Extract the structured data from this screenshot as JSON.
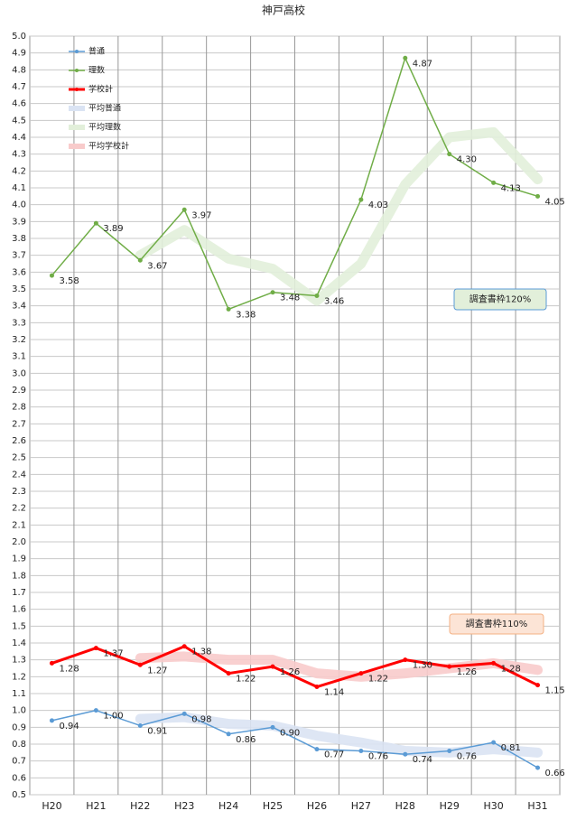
{
  "chart_data": {
    "type": "line",
    "title": "神戸高校",
    "categories": [
      "H20",
      "H21",
      "H22",
      "H23",
      "H24",
      "H25",
      "H26",
      "H27",
      "H28",
      "H29",
      "H30",
      "H31"
    ],
    "ylim": [
      0.5,
      5.0
    ],
    "yticks": [
      {
        "value": 0.5,
        "label": "0.5"
      },
      0.6,
      0.7,
      0.8,
      0.9,
      {
        "value": 1.0,
        "label": "1.0"
      },
      1.1,
      1.2,
      1.3,
      1.4,
      1.5,
      1.6,
      1.7,
      1.8,
      1.9,
      {
        "value": 2.0,
        "label": "2.0"
      },
      2.1,
      2.2,
      2.3,
      2.4,
      2.5,
      2.6,
      2.7,
      2.8,
      2.9,
      {
        "value": 3.0,
        "label": "3.0"
      },
      3.1,
      3.2,
      3.3,
      3.4,
      3.5,
      3.6,
      3.7,
      3.8,
      3.9,
      {
        "value": 4.0,
        "label": "4.0"
      },
      4.1,
      4.2,
      4.3,
      4.4,
      4.5,
      4.6,
      4.7,
      4.8,
      4.9,
      {
        "value": 5.0,
        "label": "5.0"
      }
    ],
    "grid": true,
    "legend": "top-left",
    "series": [
      {
        "name": "普通",
        "color": "#5b9bd5",
        "values": [
          0.94,
          1.0,
          0.91,
          0.98,
          0.86,
          0.9,
          0.77,
          0.76,
          0.74,
          0.76,
          0.81,
          0.66
        ],
        "value_labels": [
          "0.94",
          "1.00",
          "0.91",
          "0.98",
          "0.86",
          "0.90",
          "0.77",
          "0.76",
          "0.74",
          "0.76",
          "0.81",
          "0.66"
        ]
      },
      {
        "name": "理数",
        "color": "#70ad47",
        "values": [
          3.58,
          3.89,
          3.67,
          3.97,
          3.38,
          3.48,
          3.46,
          4.03,
          4.87,
          4.3,
          4.13,
          4.05
        ],
        "value_labels": [
          "3.58",
          "3.89",
          "3.67",
          "3.97",
          "3.38",
          "3.48",
          "3.46",
          "4.03",
          "4.87",
          "4.30",
          "4.13",
          "4.05"
        ]
      },
      {
        "name": "学校計",
        "color": "#ff0000",
        "values": [
          1.28,
          1.37,
          1.27,
          1.38,
          1.22,
          1.26,
          1.14,
          1.22,
          1.3,
          1.26,
          1.28,
          1.15
        ],
        "value_labels": [
          "1.28",
          "1.37",
          "1.27",
          "1.38",
          "1.22",
          "1.26",
          "1.14",
          "1.22",
          "1.30",
          "1.26",
          "1.28",
          "1.15"
        ]
      },
      {
        "name": "平均普通",
        "color": "#dae3f3",
        "values": [
          null,
          null,
          0.95,
          0.96,
          0.92,
          0.91,
          0.85,
          0.81,
          0.76,
          0.75,
          0.77,
          0.75
        ]
      },
      {
        "name": "平均理数",
        "color": "#e2efda",
        "values": [
          null,
          null,
          3.7,
          3.85,
          3.68,
          3.62,
          3.43,
          3.65,
          4.12,
          4.4,
          4.43,
          4.15
        ]
      },
      {
        "name": "平均学校計",
        "color": "#f8cbcb",
        "values": [
          null,
          null,
          1.31,
          1.32,
          1.3,
          1.3,
          1.22,
          1.2,
          1.22,
          1.25,
          1.28,
          1.24
        ]
      }
    ],
    "annotations": [
      {
        "text": "調査書枠120%",
        "color": "#e2efda"
      },
      {
        "text": "調査書枠110%",
        "color": "#fce4d6"
      }
    ]
  }
}
